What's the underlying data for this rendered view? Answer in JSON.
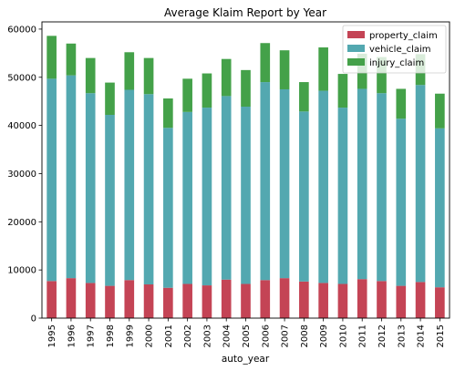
{
  "chart_data": {
    "type": "bar",
    "stacked": true,
    "title": "Average Klaim Report by Year",
    "xlabel": "auto_year",
    "ylabel": "",
    "ylim": [
      0,
      61500
    ],
    "yticks": [
      0,
      10000,
      20000,
      30000,
      40000,
      50000,
      60000
    ],
    "ytick_labels": [
      "0",
      "10000",
      "20000",
      "30000",
      "40000",
      "50000",
      "60000"
    ],
    "grid": false,
    "legend_position": "top-right",
    "categories": [
      "1995",
      "1996",
      "1997",
      "1998",
      "1999",
      "2000",
      "2001",
      "2002",
      "2003",
      "2004",
      "2005",
      "2006",
      "2007",
      "2008",
      "2009",
      "2010",
      "2011",
      "2012",
      "2013",
      "2014",
      "2015"
    ],
    "series": [
      {
        "name": "property_claim",
        "color": "#c44455",
        "values": [
          7700,
          8300,
          7300,
          6700,
          7900,
          7000,
          6300,
          7100,
          6800,
          8000,
          7100,
          7900,
          8300,
          7600,
          7300,
          7100,
          8100,
          7700,
          6700,
          7500,
          6400
        ]
      },
      {
        "name": "vehicle_claim",
        "color": "#53a8b0",
        "values": [
          42000,
          42100,
          39400,
          35500,
          39500,
          39500,
          33200,
          35700,
          36900,
          38100,
          36800,
          41100,
          39200,
          35300,
          39900,
          36600,
          39500,
          39000,
          34700,
          40900,
          33000
        ]
      },
      {
        "name": "injury_claim",
        "color": "#44a149",
        "values": [
          8900,
          6600,
          7300,
          6700,
          7800,
          7500,
          6100,
          6900,
          7100,
          7700,
          7600,
          8100,
          8100,
          6100,
          9000,
          7000,
          7300,
          7500,
          6200,
          6400,
          7200
        ]
      }
    ]
  }
}
